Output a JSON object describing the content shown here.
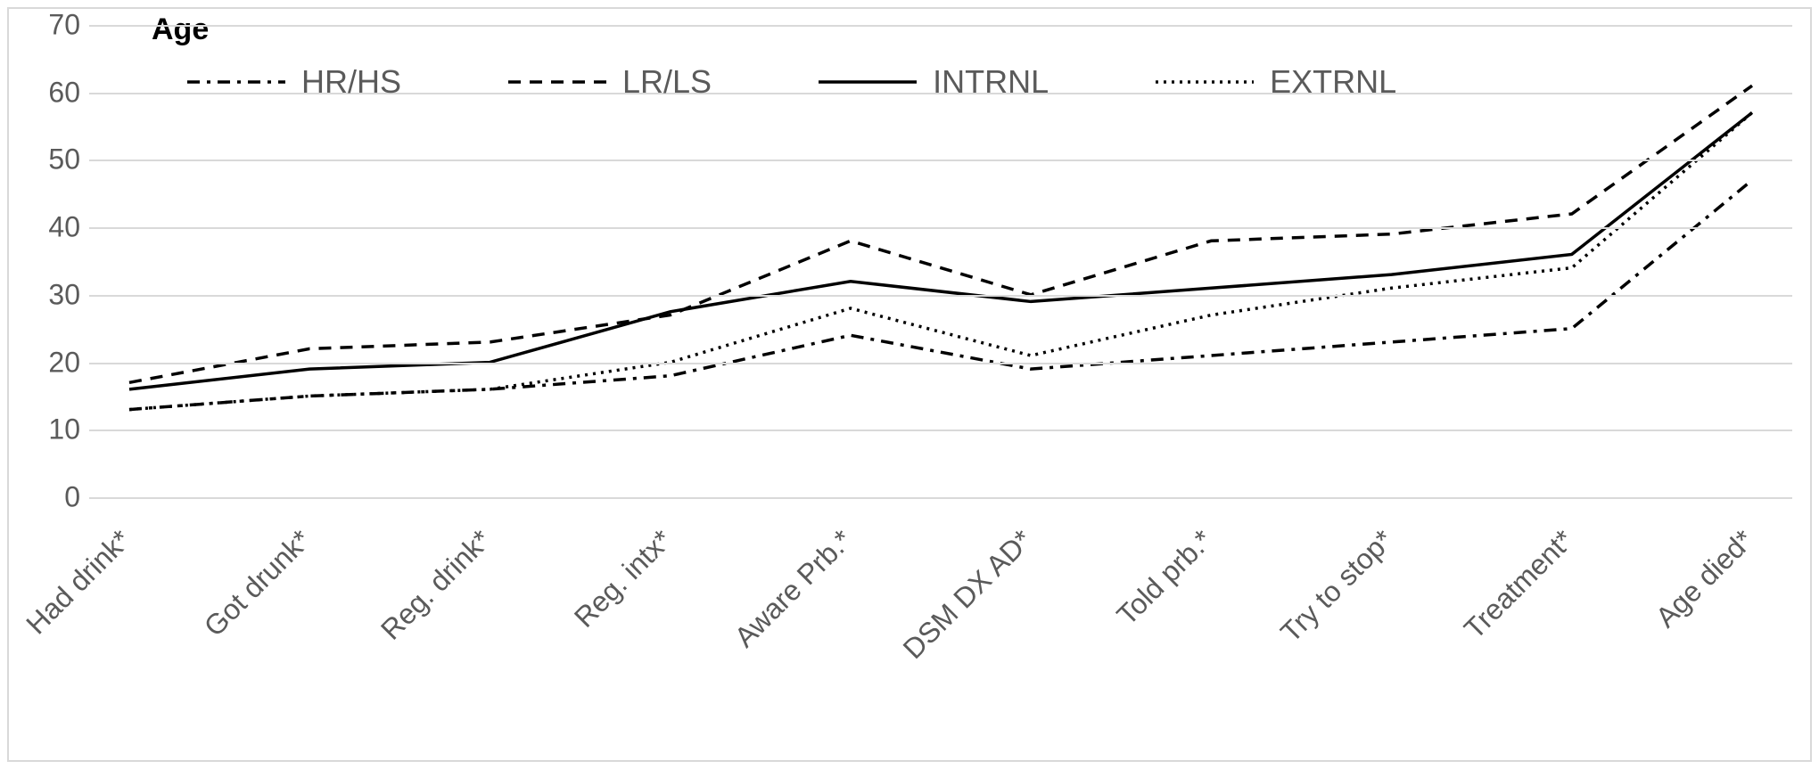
{
  "chart": {
    "type": "line",
    "axis_title": "Age",
    "axis_title_fontsize": 34,
    "axis_title_color": "#000000",
    "tick_fontsize": 32,
    "tick_color": "#5a5a5a",
    "background_color": "#ffffff",
    "border_color": "#d9d9d9",
    "grid_color": "#d9d9d9",
    "y": {
      "min": 0,
      "max": 70,
      "tick_step": 10,
      "ticks": [
        0,
        10,
        20,
        30,
        40,
        50,
        60,
        70
      ]
    },
    "x": {
      "categories": [
        "Had drink*",
        "Got drunk*",
        "Reg. drink*",
        "Reg. intx*",
        "Aware Prb.*",
        "DSM DX AD*",
        "Told prb.*",
        "Try to stop*",
        "Treatment*",
        "Age died*"
      ],
      "label_rotation_deg": -45
    },
    "series": [
      {
        "name": "HR/HS",
        "color": "#000000",
        "line_width": 3.5,
        "dash": "14,8,4,8",
        "values": [
          13,
          15,
          16,
          18,
          24,
          19,
          21,
          23,
          25,
          47
        ]
      },
      {
        "name": "LR/LS",
        "color": "#000000",
        "line_width": 3.5,
        "dash": "14,10",
        "values": [
          17,
          22,
          23,
          27,
          38,
          30,
          38,
          39,
          42,
          61
        ]
      },
      {
        "name": "INTRNL",
        "color": "#000000",
        "line_width": 3.5,
        "dash": "",
        "values": [
          16,
          19,
          20,
          27.5,
          32,
          29,
          31,
          33,
          36,
          57
        ]
      },
      {
        "name": "EXTRNL",
        "color": "#000000",
        "line_width": 3.5,
        "dash": "3,6",
        "values": [
          13,
          15,
          16,
          20,
          28,
          21,
          27,
          31,
          34,
          57
        ]
      }
    ],
    "legend": {
      "fontsize": 36,
      "color": "#5a5a5a",
      "swatch_width": 110
    }
  }
}
